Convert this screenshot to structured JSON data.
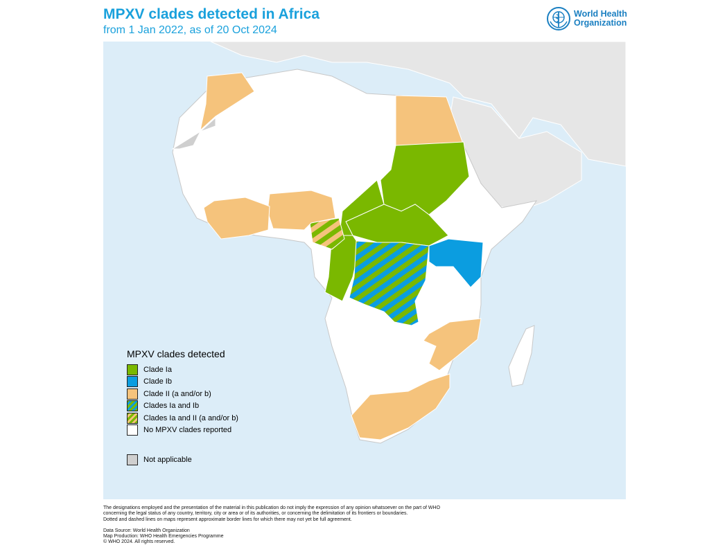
{
  "header": {
    "title": "MPXV clades detected in Africa",
    "subtitle": "from 1 Jan 2022, as of 20 Oct 2024",
    "logo_line1": "World Health",
    "logo_line2": "Organization"
  },
  "colors": {
    "clade_ia": "#7ab800",
    "clade_ib": "#0b9de0",
    "clade_ii": "#f5c37c",
    "no_report": "#ffffff",
    "not_applicable": "#cfcfcf",
    "ocean": "#dcedf8",
    "other_land": "#e6e6e6",
    "title": "#1aa1dc"
  },
  "legend": {
    "title": "MPXV clades detected",
    "items": [
      {
        "label": "Clade Ia",
        "swatch": "clade_ia"
      },
      {
        "label": "Clade Ib",
        "swatch": "clade_ib"
      },
      {
        "label": "Clade II (a and/or b)",
        "swatch": "clade_ii"
      },
      {
        "label": "Clades Ia and Ib",
        "swatch": "hatch_ia_ib"
      },
      {
        "label": "Clades Ia and II (a and/or b)",
        "swatch": "hatch_ia_ii"
      },
      {
        "label": "No MPXV clades reported",
        "swatch": "no_report"
      }
    ],
    "not_applicable": "Not applicable"
  },
  "footer": {
    "disclaimer_1": "The designations employed and the presentation of the material in this publication do not imply the expression of any opinion whatsoever on the part of WHO",
    "disclaimer_2": "concerning the legal status of any country, territory, city or area or of its authorities, or concerning the delimitation of its frontiers or boundaries.",
    "disclaimer_3": "Dotted and dashed lines on maps represent approximate border lines for which there may not yet be full agreement.",
    "source": "Data Source: World Health Organization",
    "production": "Map Production: WHO Health Emergencies Programme",
    "copyright": "© WHO 2024. All rights reserved."
  }
}
